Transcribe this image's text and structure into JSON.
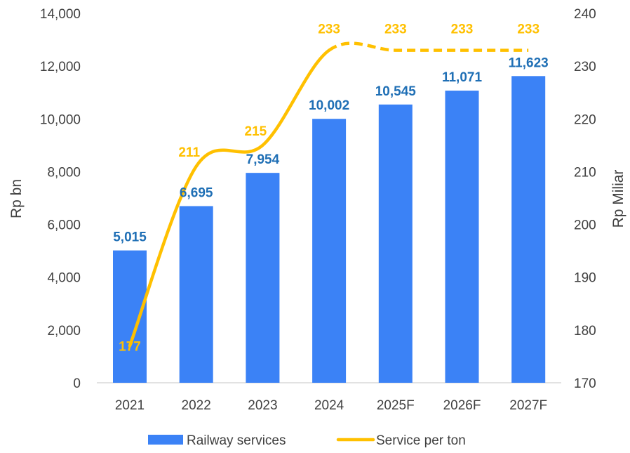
{
  "chart_data": {
    "type": "bar",
    "categories": [
      "2021",
      "2022",
      "2023",
      "2024",
      "2025F",
      "2026F",
      "2027F"
    ],
    "series": [
      {
        "name": "Railway services",
        "type": "bar",
        "axis": "left",
        "values": [
          5015,
          6695,
          7954,
          10002,
          10545,
          11071,
          11623
        ],
        "labels": [
          "5,015",
          "6,695",
          "7,954",
          "10,002",
          "10,545",
          "11,071",
          "11,623"
        ],
        "color": "#3b82f6",
        "label_color": "#1f6fb5"
      },
      {
        "name": "Service per ton",
        "type": "line",
        "axis": "right",
        "values": [
          177,
          211,
          215,
          233,
          233,
          233,
          233
        ],
        "labels": [
          "177",
          "211",
          "215",
          "233",
          "233",
          "233",
          "233"
        ],
        "color": "#ffc000",
        "dashed_from_index": 3
      }
    ],
    "ylabel": "Rp bn",
    "ylabel_right": "Rp Miliar",
    "ylim": [
      0,
      14000
    ],
    "ylim_right": [
      170,
      240
    ],
    "yticks": [
      "0",
      "2,000",
      "4,000",
      "6,000",
      "8,000",
      "10,000",
      "12,000",
      "14,000"
    ],
    "yticks_right": [
      "170",
      "180",
      "190",
      "200",
      "210",
      "220",
      "230",
      "240"
    ],
    "grid": false,
    "legend_position": "bottom"
  }
}
